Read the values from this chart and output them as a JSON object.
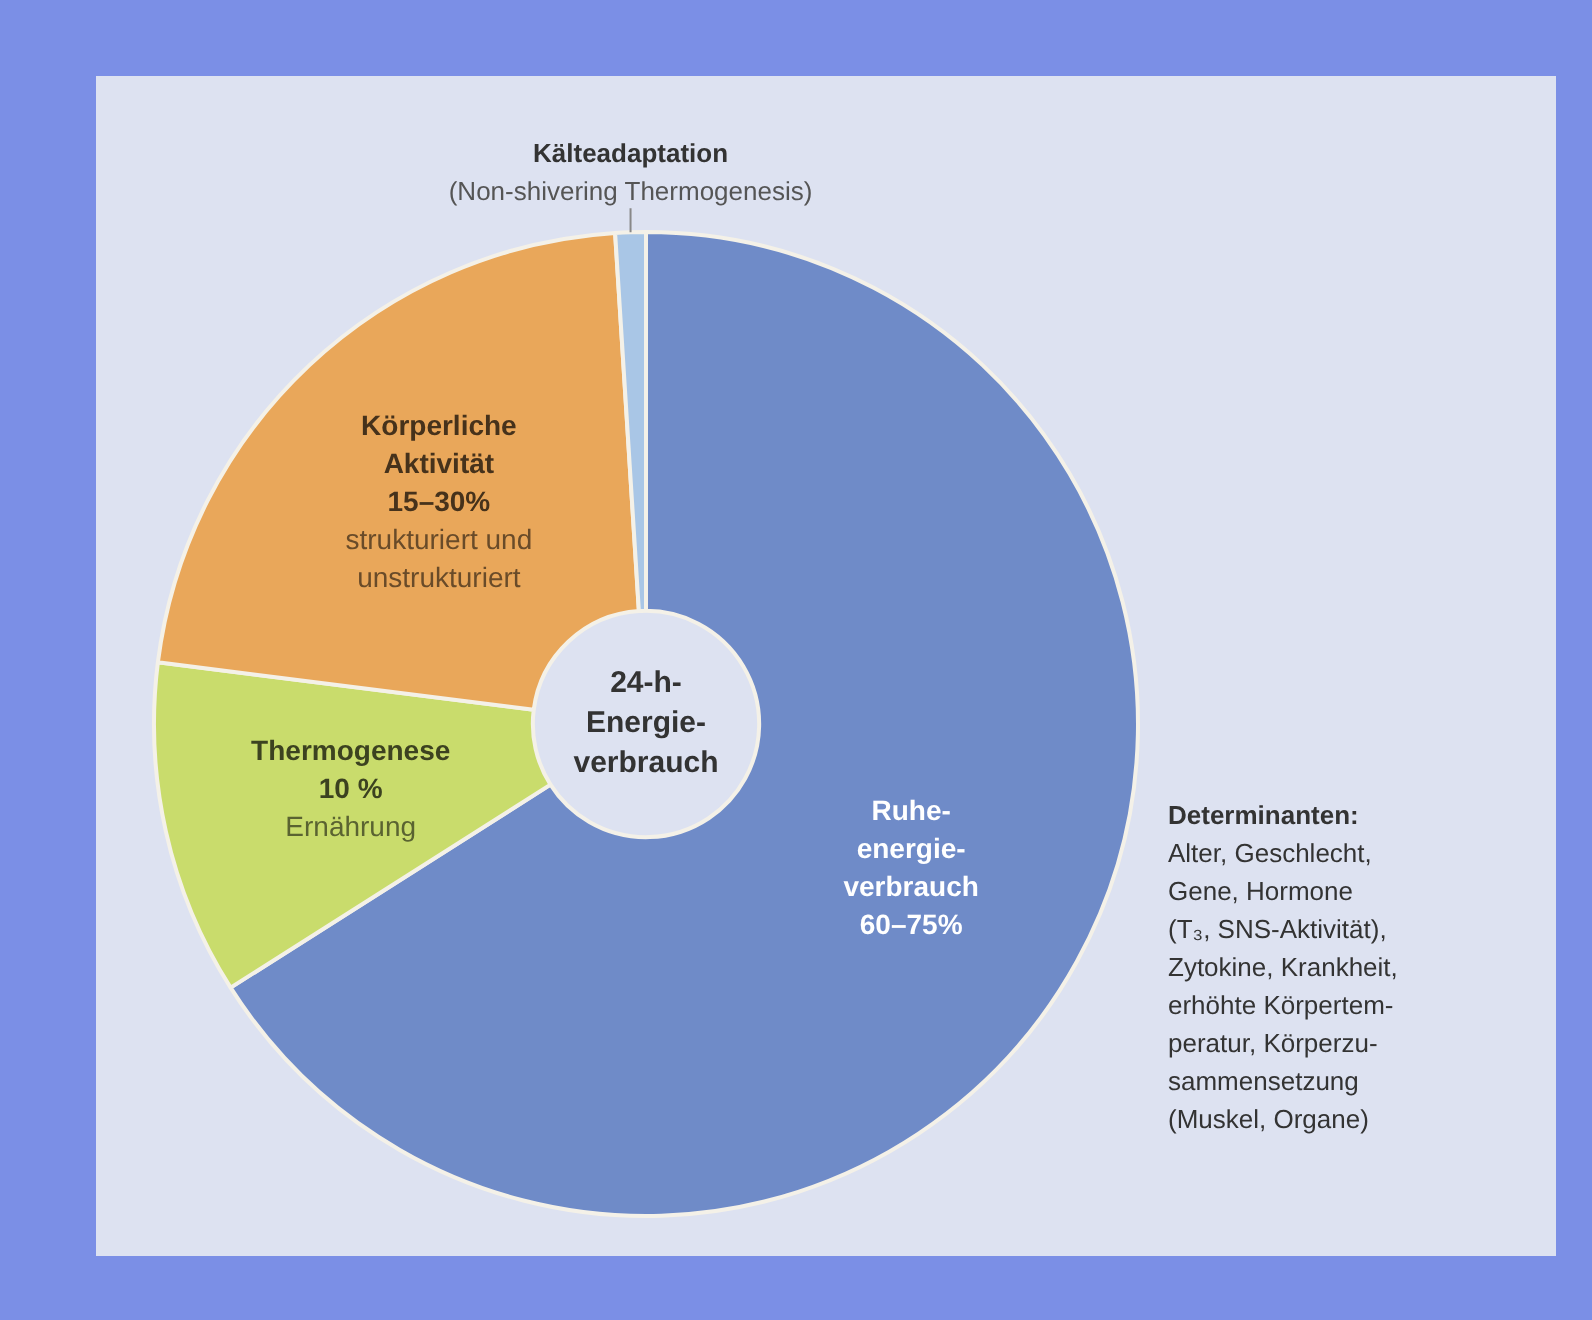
{
  "chart_data": {
    "type": "donut",
    "title": "24-h-\nEnergie-\nverbrauch",
    "categories": [
      "Ruhe-\nenergie-\nverbrauch\n60–75%",
      "Thermogenese\n10 %",
      "Körperliche\nAktivität\n15–30%",
      "Kälteadaptation"
    ],
    "values": [
      66,
      11,
      22,
      1
    ],
    "colors": [
      "#6f8bc8",
      "#c9dc6c",
      "#e9a75a",
      "#a9c6e6"
    ],
    "annotations": [
      {
        "text": "Ernährung",
        "x": "Thermogenese\n10 %"
      },
      {
        "text": "strukturiert und\nunstrukturiert",
        "x": "Körperliche\nAktivität\n15–30%"
      },
      {
        "text": "(Non-shivering Thermogenesis)",
        "x": "Kälteadaptation"
      },
      "Determinanten:\nAlter, Geschlecht,\nGene, Hormone\n(T₃, SNS-Aktivität),\nZytokine, Krankheit,\nerhöhte Körpertem-\nperatur, Körperzu-\nsammensetzung\n(Muskel, Organe)"
    ],
    "legend": false
  }
}
